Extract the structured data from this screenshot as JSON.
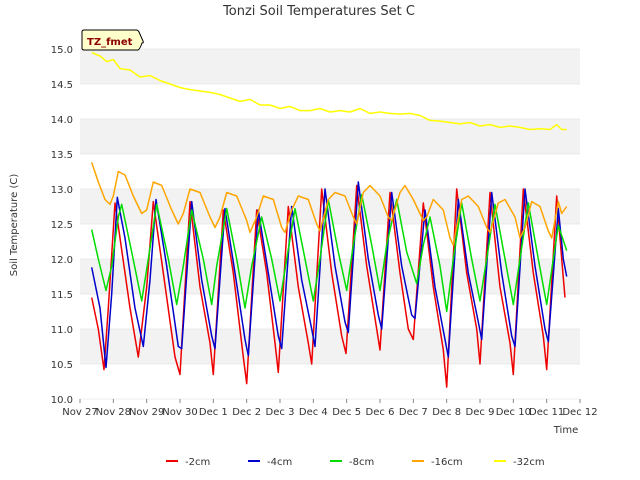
{
  "chart_data": {
    "type": "line",
    "title": "Tonzi Soil Temperatures Set C",
    "xlabel": "Time",
    "ylabel": "Soil Temperature (C)",
    "badge": "TZ_fmet",
    "ylim": [
      10.0,
      15.0
    ],
    "yticks": [
      "10.0",
      "10.5",
      "11.0",
      "11.5",
      "12.0",
      "12.5",
      "13.0",
      "13.5",
      "14.0",
      "14.5",
      "15.0"
    ],
    "xlim": [
      0,
      15
    ],
    "xticks": [
      "Nov 27",
      "Nov 28",
      "Nov 29",
      "Nov 30",
      "Dec 1",
      "Dec 2",
      "Dec 3",
      "Dec 4",
      "Dec 5",
      "Dec 6",
      "Dec 7",
      "Dec 8",
      "Dec 9",
      "Dec 10",
      "Dec 11",
      "Dec 12"
    ],
    "grid": "horizontal bands",
    "legend_position": "bottom",
    "series": [
      {
        "name": "-2cm",
        "color": "#ee0000",
        "points": [
          [
            0.35,
            11.45
          ],
          [
            0.55,
            11.0
          ],
          [
            0.72,
            10.42
          ],
          [
            0.85,
            11.3
          ],
          [
            1.05,
            12.8
          ],
          [
            1.2,
            12.3
          ],
          [
            1.5,
            11.3
          ],
          [
            1.75,
            10.6
          ],
          [
            2.0,
            11.6
          ],
          [
            2.2,
            12.82
          ],
          [
            2.5,
            11.8
          ],
          [
            2.85,
            10.6
          ],
          [
            3.0,
            10.35
          ],
          [
            3.3,
            12.82
          ],
          [
            3.6,
            11.6
          ],
          [
            3.9,
            10.8
          ],
          [
            4.0,
            10.35
          ],
          [
            4.3,
            12.7
          ],
          [
            4.6,
            11.8
          ],
          [
            4.9,
            10.6
          ],
          [
            5.0,
            10.22
          ],
          [
            5.3,
            12.7
          ],
          [
            5.6,
            11.8
          ],
          [
            5.85,
            10.8
          ],
          [
            5.95,
            10.38
          ],
          [
            6.25,
            12.75
          ],
          [
            6.55,
            11.6
          ],
          [
            6.85,
            10.8
          ],
          [
            6.95,
            10.5
          ],
          [
            7.25,
            13.0
          ],
          [
            7.55,
            11.8
          ],
          [
            7.85,
            10.9
          ],
          [
            7.98,
            10.65
          ],
          [
            8.3,
            13.05
          ],
          [
            8.6,
            11.9
          ],
          [
            8.9,
            11.0
          ],
          [
            9.0,
            10.7
          ],
          [
            9.3,
            12.95
          ],
          [
            9.6,
            11.8
          ],
          [
            9.85,
            11.0
          ],
          [
            10.0,
            10.85
          ],
          [
            10.3,
            12.8
          ],
          [
            10.6,
            11.6
          ],
          [
            10.9,
            10.7
          ],
          [
            11.0,
            10.17
          ],
          [
            11.3,
            13.0
          ],
          [
            11.6,
            11.8
          ],
          [
            11.9,
            11.0
          ],
          [
            12.0,
            10.5
          ],
          [
            12.3,
            12.95
          ],
          [
            12.6,
            11.6
          ],
          [
            12.9,
            10.8
          ],
          [
            13.0,
            10.35
          ],
          [
            13.3,
            13.0
          ],
          [
            13.6,
            11.8
          ],
          [
            13.9,
            10.9
          ],
          [
            14.0,
            10.42
          ],
          [
            14.3,
            12.9
          ],
          [
            14.45,
            12.0
          ],
          [
            14.55,
            11.45
          ]
        ]
      },
      {
        "name": "-4cm",
        "color": "#0000cc",
        "points": [
          [
            0.35,
            11.88
          ],
          [
            0.6,
            11.3
          ],
          [
            0.78,
            10.45
          ],
          [
            0.95,
            11.5
          ],
          [
            1.12,
            12.88
          ],
          [
            1.35,
            12.3
          ],
          [
            1.65,
            11.3
          ],
          [
            1.9,
            10.75
          ],
          [
            2.1,
            11.7
          ],
          [
            2.28,
            12.85
          ],
          [
            2.6,
            11.9
          ],
          [
            2.95,
            10.75
          ],
          [
            3.05,
            10.72
          ],
          [
            3.35,
            12.82
          ],
          [
            3.65,
            11.7
          ],
          [
            3.95,
            10.9
          ],
          [
            4.05,
            10.72
          ],
          [
            4.35,
            12.72
          ],
          [
            4.65,
            11.8
          ],
          [
            4.95,
            10.85
          ],
          [
            5.05,
            10.62
          ],
          [
            5.35,
            12.7
          ],
          [
            5.65,
            11.8
          ],
          [
            5.95,
            10.9
          ],
          [
            6.05,
            10.72
          ],
          [
            6.35,
            12.75
          ],
          [
            6.65,
            11.7
          ],
          [
            6.95,
            11.0
          ],
          [
            7.05,
            10.75
          ],
          [
            7.35,
            13.0
          ],
          [
            7.65,
            11.9
          ],
          [
            7.95,
            11.1
          ],
          [
            8.05,
            10.95
          ],
          [
            8.35,
            13.1
          ],
          [
            8.65,
            12.0
          ],
          [
            8.95,
            11.2
          ],
          [
            9.05,
            11.0
          ],
          [
            9.35,
            12.95
          ],
          [
            9.65,
            11.9
          ],
          [
            9.95,
            11.2
          ],
          [
            10.05,
            11.15
          ],
          [
            10.35,
            12.7
          ],
          [
            10.65,
            11.6
          ],
          [
            10.95,
            10.85
          ],
          [
            11.05,
            10.6
          ],
          [
            11.35,
            12.85
          ],
          [
            11.65,
            11.8
          ],
          [
            11.95,
            11.1
          ],
          [
            12.05,
            10.85
          ],
          [
            12.35,
            12.95
          ],
          [
            12.65,
            11.8
          ],
          [
            12.95,
            10.9
          ],
          [
            13.05,
            10.75
          ],
          [
            13.35,
            13.0
          ],
          [
            13.65,
            11.9
          ],
          [
            13.95,
            11.0
          ],
          [
            14.05,
            10.82
          ],
          [
            14.35,
            12.72
          ],
          [
            14.5,
            12.0
          ],
          [
            14.6,
            11.75
          ]
        ]
      },
      {
        "name": "-8cm",
        "color": "#00dd00",
        "points": [
          [
            0.35,
            12.42
          ],
          [
            0.55,
            12.0
          ],
          [
            0.78,
            11.55
          ],
          [
            0.95,
            11.9
          ],
          [
            1.15,
            12.6
          ],
          [
            1.25,
            12.78
          ],
          [
            1.55,
            12.1
          ],
          [
            1.85,
            11.4
          ],
          [
            2.05,
            12.0
          ],
          [
            2.3,
            12.78
          ],
          [
            2.65,
            12.0
          ],
          [
            2.9,
            11.35
          ],
          [
            3.1,
            11.9
          ],
          [
            3.35,
            12.7
          ],
          [
            3.7,
            12.0
          ],
          [
            3.95,
            11.35
          ],
          [
            4.1,
            11.9
          ],
          [
            4.4,
            12.72
          ],
          [
            4.7,
            12.0
          ],
          [
            4.95,
            11.3
          ],
          [
            5.15,
            11.9
          ],
          [
            5.45,
            12.6
          ],
          [
            5.75,
            12.0
          ],
          [
            6.0,
            11.4
          ],
          [
            6.2,
            12.0
          ],
          [
            6.45,
            12.72
          ],
          [
            6.75,
            12.0
          ],
          [
            7.0,
            11.4
          ],
          [
            7.2,
            12.0
          ],
          [
            7.45,
            12.85
          ],
          [
            7.75,
            12.1
          ],
          [
            8.0,
            11.55
          ],
          [
            8.2,
            12.2
          ],
          [
            8.45,
            12.92
          ],
          [
            8.75,
            12.2
          ],
          [
            9.0,
            11.55
          ],
          [
            9.2,
            12.2
          ],
          [
            9.5,
            12.85
          ],
          [
            9.8,
            12.1
          ],
          [
            10.1,
            11.65
          ],
          [
            10.3,
            12.2
          ],
          [
            10.5,
            12.6
          ],
          [
            10.8,
            11.9
          ],
          [
            11.0,
            11.25
          ],
          [
            11.2,
            12.0
          ],
          [
            11.45,
            12.8
          ],
          [
            11.75,
            12.0
          ],
          [
            12.0,
            11.4
          ],
          [
            12.2,
            12.0
          ],
          [
            12.45,
            12.78
          ],
          [
            12.75,
            12.0
          ],
          [
            13.0,
            11.35
          ],
          [
            13.2,
            12.0
          ],
          [
            13.45,
            12.8
          ],
          [
            13.75,
            12.0
          ],
          [
            14.0,
            11.35
          ],
          [
            14.2,
            12.0
          ],
          [
            14.35,
            12.48
          ],
          [
            14.6,
            12.12
          ]
        ]
      },
      {
        "name": "-16cm",
        "color": "#ffa500",
        "points": [
          [
            0.35,
            13.38
          ],
          [
            0.55,
            13.1
          ],
          [
            0.75,
            12.85
          ],
          [
            0.9,
            12.78
          ],
          [
            1.0,
            12.9
          ],
          [
            1.15,
            13.25
          ],
          [
            1.35,
            13.2
          ],
          [
            1.6,
            12.9
          ],
          [
            1.85,
            12.65
          ],
          [
            2.0,
            12.7
          ],
          [
            2.2,
            13.1
          ],
          [
            2.45,
            13.05
          ],
          [
            2.75,
            12.7
          ],
          [
            2.95,
            12.5
          ],
          [
            3.1,
            12.65
          ],
          [
            3.3,
            13.0
          ],
          [
            3.6,
            12.95
          ],
          [
            3.9,
            12.6
          ],
          [
            4.05,
            12.45
          ],
          [
            4.2,
            12.6
          ],
          [
            4.4,
            12.95
          ],
          [
            4.7,
            12.9
          ],
          [
            5.0,
            12.55
          ],
          [
            5.1,
            12.38
          ],
          [
            5.3,
            12.6
          ],
          [
            5.5,
            12.9
          ],
          [
            5.8,
            12.85
          ],
          [
            6.05,
            12.45
          ],
          [
            6.15,
            12.38
          ],
          [
            6.35,
            12.7
          ],
          [
            6.55,
            12.9
          ],
          [
            6.85,
            12.85
          ],
          [
            7.1,
            12.5
          ],
          [
            7.2,
            12.4
          ],
          [
            7.45,
            12.85
          ],
          [
            7.65,
            12.95
          ],
          [
            7.95,
            12.9
          ],
          [
            8.2,
            12.6
          ],
          [
            8.3,
            12.5
          ],
          [
            8.5,
            12.95
          ],
          [
            8.7,
            13.05
          ],
          [
            9.0,
            12.9
          ],
          [
            9.25,
            12.6
          ],
          [
            9.35,
            12.55
          ],
          [
            9.6,
            12.95
          ],
          [
            9.75,
            13.05
          ],
          [
            10.0,
            12.85
          ],
          [
            10.3,
            12.55
          ],
          [
            10.4,
            12.6
          ],
          [
            10.6,
            12.85
          ],
          [
            10.9,
            12.7
          ],
          [
            11.1,
            12.3
          ],
          [
            11.2,
            12.2
          ],
          [
            11.45,
            12.85
          ],
          [
            11.65,
            12.9
          ],
          [
            11.95,
            12.75
          ],
          [
            12.2,
            12.45
          ],
          [
            12.3,
            12.38
          ],
          [
            12.55,
            12.8
          ],
          [
            12.75,
            12.85
          ],
          [
            13.05,
            12.6
          ],
          [
            13.2,
            12.3
          ],
          [
            13.35,
            12.45
          ],
          [
            13.55,
            12.82
          ],
          [
            13.8,
            12.75
          ],
          [
            14.05,
            12.4
          ],
          [
            14.15,
            12.3
          ],
          [
            14.35,
            12.82
          ],
          [
            14.45,
            12.65
          ],
          [
            14.6,
            12.75
          ]
        ]
      },
      {
        "name": "-32cm",
        "color": "#ffff00",
        "points": [
          [
            0.35,
            14.95
          ],
          [
            0.6,
            14.9
          ],
          [
            0.8,
            14.82
          ],
          [
            1.0,
            14.85
          ],
          [
            1.2,
            14.72
          ],
          [
            1.5,
            14.7
          ],
          [
            1.8,
            14.6
          ],
          [
            2.1,
            14.62
          ],
          [
            2.4,
            14.55
          ],
          [
            2.7,
            14.5
          ],
          [
            3.0,
            14.45
          ],
          [
            3.3,
            14.42
          ],
          [
            3.6,
            14.4
          ],
          [
            3.9,
            14.38
          ],
          [
            4.2,
            14.35
          ],
          [
            4.5,
            14.3
          ],
          [
            4.8,
            14.25
          ],
          [
            5.1,
            14.28
          ],
          [
            5.4,
            14.2
          ],
          [
            5.7,
            14.2
          ],
          [
            6.0,
            14.15
          ],
          [
            6.3,
            14.18
          ],
          [
            6.6,
            14.12
          ],
          [
            6.9,
            14.12
          ],
          [
            7.2,
            14.15
          ],
          [
            7.5,
            14.1
          ],
          [
            7.8,
            14.12
          ],
          [
            8.1,
            14.1
          ],
          [
            8.4,
            14.15
          ],
          [
            8.7,
            14.08
          ],
          [
            9.0,
            14.1
          ],
          [
            9.3,
            14.08
          ],
          [
            9.6,
            14.07
          ],
          [
            9.9,
            14.08
          ],
          [
            10.2,
            14.05
          ],
          [
            10.5,
            13.98
          ],
          [
            10.8,
            13.97
          ],
          [
            11.1,
            13.95
          ],
          [
            11.4,
            13.93
          ],
          [
            11.7,
            13.95
          ],
          [
            12.0,
            13.9
          ],
          [
            12.3,
            13.92
          ],
          [
            12.6,
            13.88
          ],
          [
            12.9,
            13.9
          ],
          [
            13.2,
            13.88
          ],
          [
            13.5,
            13.85
          ],
          [
            13.8,
            13.86
          ],
          [
            14.1,
            13.85
          ],
          [
            14.3,
            13.92
          ],
          [
            14.45,
            13.85
          ],
          [
            14.6,
            13.85
          ]
        ]
      }
    ]
  }
}
